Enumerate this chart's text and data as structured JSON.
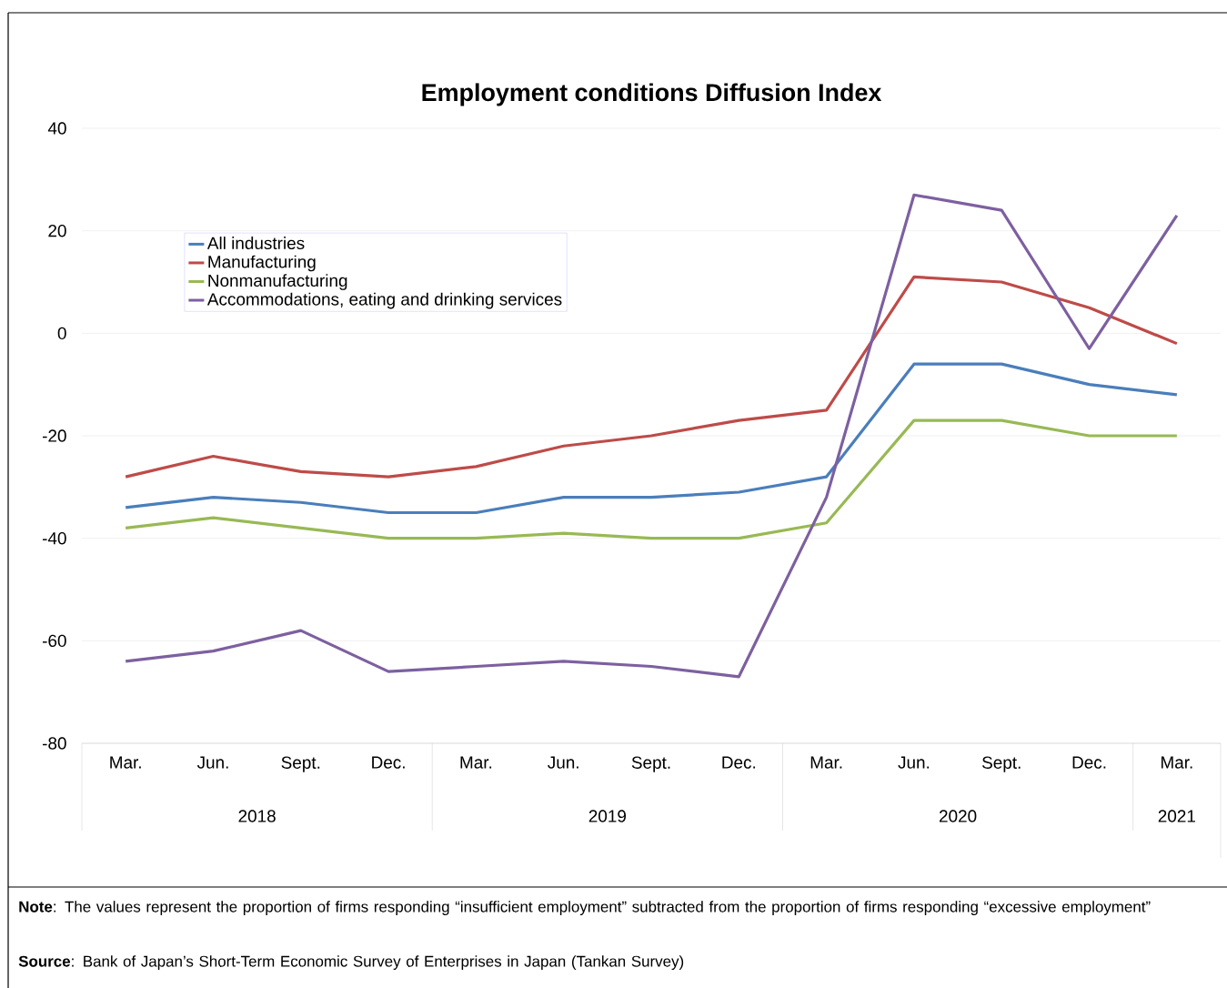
{
  "chart_data": {
    "type": "line",
    "title": "Employment conditions Diffusion Index",
    "categories": [
      "Mar.",
      "Jun.",
      "Sept.",
      "Dec.",
      "Mar.",
      "Jun.",
      "Sept.",
      "Dec.",
      "Mar.",
      "Jun.",
      "Sept.",
      "Dec.",
      "Mar."
    ],
    "series": [
      {
        "name": "All industries",
        "color": "#4a7ebb",
        "values": [
          -34,
          -32,
          -33,
          -35,
          -35,
          -32,
          -32,
          -31,
          -28,
          -6,
          -6,
          -10,
          -12
        ]
      },
      {
        "name": "Manufacturing",
        "color": "#be4b48",
        "values": [
          -28,
          -24,
          -27,
          -28,
          -26,
          -22,
          -20,
          -17,
          -15,
          11,
          10,
          5,
          -2
        ]
      },
      {
        "name": "Nonmanufacturing",
        "color": "#98b954",
        "values": [
          -38,
          -36,
          -38,
          -40,
          -40,
          -39,
          -40,
          -40,
          -37,
          -17,
          -17,
          -20,
          -20
        ]
      },
      {
        "name": "Accommodations, eating and drinking services",
        "color": "#7d60a0",
        "values": [
          -64,
          -62,
          -58,
          -66,
          -65,
          -64,
          -65,
          -67,
          -32,
          27,
          24,
          -3,
          23
        ]
      }
    ],
    "ylim": [
      -80,
      40
    ],
    "yticks": [
      -80,
      -60,
      -40,
      -20,
      0,
      20,
      40
    ],
    "grid": "y",
    "legend": "top left",
    "annotations": [
      "2018",
      "2019",
      "2020",
      "2021",
      "**Note**: The values represent the proportion of firms responding “insufficient employment” subtracted from the proportion of firms responding “excessive employment”",
      "**Source**: Bank of Japan’s Short-Term Economic Survey of Enterprises in Japan (Tankan Survey)"
    ]
  }
}
